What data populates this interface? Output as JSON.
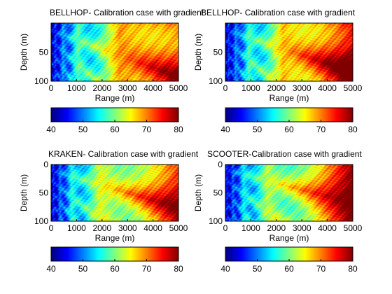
{
  "chart_data": [
    {
      "type": "heatmap",
      "title": "BELLHOP- Calibration  case with gradient",
      "xlabel": "Range (m)",
      "ylabel": "Depth (m)",
      "xlim": [
        0,
        5000
      ],
      "ylim": [
        100,
        0
      ],
      "xticks": [
        "0",
        "1000",
        "2000",
        "3000",
        "4000",
        "5000"
      ],
      "yticks": [
        "50",
        "100"
      ],
      "colorbar": {
        "range": [
          40,
          80
        ],
        "ticks": [
          "40",
          "50",
          "60",
          "70",
          "80"
        ],
        "colormap": "jet"
      }
    },
    {
      "type": "heatmap",
      "title": "BELLHOP- Calibration  case with gradient",
      "xlabel": "Range (m)",
      "ylabel": "Depth (m)",
      "xlim": [
        0,
        5000
      ],
      "ylim": [
        100,
        0
      ],
      "xticks": [
        "0",
        "1000",
        "2000",
        "3000",
        "4000",
        "5000"
      ],
      "yticks": [
        "50",
        "100"
      ],
      "colorbar": {
        "range": [
          40,
          80
        ],
        "ticks": [
          "40",
          "50",
          "60",
          "70",
          "80"
        ],
        "colormap": "jet"
      }
    },
    {
      "type": "heatmap",
      "title": "KRAKEN- Calibration case with gradient",
      "xlabel": "Range (m)",
      "ylabel": "Depth (m)",
      "xlim": [
        0,
        5000
      ],
      "ylim": [
        100,
        0
      ],
      "xticks": [
        "0",
        "1000",
        "2000",
        "3000",
        "4000",
        "5000"
      ],
      "yticks": [
        "0",
        "50",
        "100"
      ],
      "colorbar": {
        "range": [
          40,
          80
        ],
        "ticks": [
          "40",
          "50",
          "60",
          "70",
          "80"
        ],
        "colormap": "jet"
      }
    },
    {
      "type": "heatmap",
      "title": "SCOOTER-Calibration case with gradient",
      "xlabel": "Range (m)",
      "ylabel": "Depth (m)",
      "xlim": [
        0,
        5000
      ],
      "ylim": [
        100,
        0
      ],
      "xticks": [
        "0",
        "1000",
        "2000",
        "3000",
        "4000",
        "5000"
      ],
      "yticks": [
        "0",
        "50",
        "100"
      ],
      "colorbar": {
        "range": [
          40,
          80
        ],
        "ticks": [
          "40",
          "50",
          "60",
          "70",
          "80"
        ],
        "colormap": "jet"
      }
    }
  ]
}
